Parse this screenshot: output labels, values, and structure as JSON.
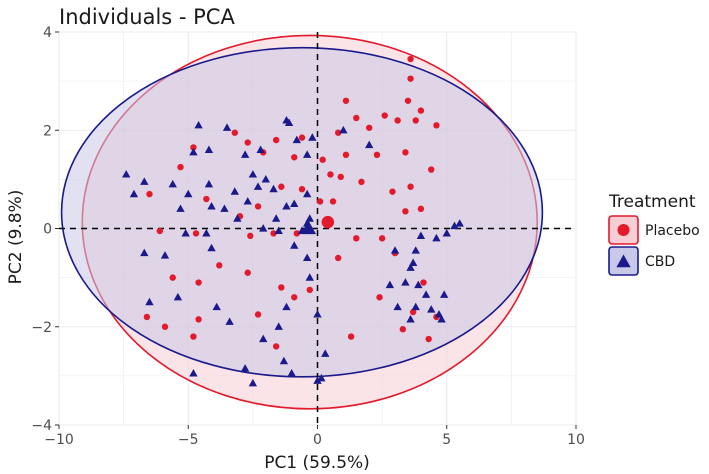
{
  "chart_data": {
    "type": "scatter",
    "title": "Individuals - PCA",
    "xlabel": "PC1 (59.5%)",
    "ylabel": "PC2 (9.8%)",
    "xlim": [
      -10,
      10
    ],
    "ylim": [
      -4,
      4
    ],
    "x_ticks": [
      -10,
      -5,
      0,
      5,
      10
    ],
    "y_ticks": [
      -4,
      -2,
      0,
      2,
      4
    ],
    "x_tick_labels": [
      "−10",
      "−5",
      "0",
      "5",
      "10"
    ],
    "y_tick_labels": [
      "−4",
      "−2",
      "0",
      "2",
      "4"
    ],
    "grid": true,
    "reference_lines": {
      "x": 0,
      "y": 0,
      "style": "dashed"
    },
    "legend": {
      "title": "Treatment",
      "position": "right"
    },
    "series": [
      {
        "name": "Placebo",
        "color": "#e31a2c",
        "fill": "#f8cdd3",
        "marker": "circle",
        "centroid": [
          0.4,
          0.13
        ],
        "ellipse": {
          "cx": -0.3,
          "cy": 0.13,
          "rx": 8.8,
          "ry": 3.8
        },
        "points": [
          [
            3.6,
            3.45
          ],
          [
            3.6,
            3.05
          ],
          [
            1.1,
            2.6
          ],
          [
            3.5,
            2.6
          ],
          [
            4.0,
            2.4
          ],
          [
            1.5,
            2.25
          ],
          [
            2.6,
            2.3
          ],
          [
            3.8,
            2.2
          ],
          [
            4.6,
            2.1
          ],
          [
            0.8,
            1.95
          ],
          [
            2.0,
            2.05
          ],
          [
            3.1,
            2.2
          ],
          [
            -0.6,
            1.85
          ],
          [
            -1.6,
            1.8
          ],
          [
            -2.7,
            1.75
          ],
          [
            -3.2,
            1.95
          ],
          [
            -4.8,
            1.65
          ],
          [
            -2.1,
            1.55
          ],
          [
            -0.9,
            1.45
          ],
          [
            0.2,
            1.4
          ],
          [
            1.1,
            1.5
          ],
          [
            2.3,
            1.5
          ],
          [
            3.4,
            1.55
          ],
          [
            4.4,
            1.2
          ],
          [
            -5.3,
            1.25
          ],
          [
            0.5,
            1.1
          ],
          [
            0.9,
            1.05
          ],
          [
            -0.6,
            0.8
          ],
          [
            1.7,
            0.95
          ],
          [
            3.6,
            0.85
          ],
          [
            -1.4,
            0.85
          ],
          [
            -6.5,
            0.7
          ],
          [
            -4.3,
            0.6
          ],
          [
            0.1,
            0.55
          ],
          [
            2.9,
            0.75
          ],
          [
            0.6,
            0.55
          ],
          [
            -2.3,
            0.45
          ],
          [
            -3.0,
            0.25
          ],
          [
            3.4,
            0.35
          ],
          [
            4.0,
            0.4
          ],
          [
            -6.1,
            -0.05
          ],
          [
            -1.7,
            -0.1
          ],
          [
            -2.6,
            -0.15
          ],
          [
            -4.7,
            -0.1
          ],
          [
            -0.8,
            -0.1
          ],
          [
            1.5,
            -0.2
          ],
          [
            2.5,
            -0.2
          ],
          [
            3.0,
            -0.5
          ],
          [
            0.8,
            -0.6
          ],
          [
            -3.8,
            -0.75
          ],
          [
            -5.6,
            -1.0
          ],
          [
            -4.6,
            -1.1
          ],
          [
            -2.7,
            -0.9
          ],
          [
            -1.4,
            -1.2
          ],
          [
            -0.3,
            -1.25
          ],
          [
            4.1,
            -1.1
          ],
          [
            2.4,
            -1.4
          ],
          [
            -6.6,
            -1.8
          ],
          [
            -4.6,
            -1.85
          ],
          [
            -2.3,
            -1.75
          ],
          [
            -0.9,
            -1.4
          ],
          [
            3.7,
            -1.7
          ],
          [
            -5.9,
            -2.0
          ],
          [
            4.6,
            -1.8
          ],
          [
            3.3,
            -2.05
          ],
          [
            -4.8,
            -2.2
          ],
          [
            1.3,
            -2.2
          ],
          [
            4.3,
            -2.25
          ],
          [
            -1.6,
            -2.4
          ]
        ]
      },
      {
        "name": "CBD",
        "color": "#1a1a8c",
        "fill": "#c8c8e8",
        "marker": "triangle",
        "centroid": [
          -0.35,
          0.0
        ],
        "ellipse": {
          "cx": -0.6,
          "cy": 0.33,
          "rx": 9.3,
          "ry": 3.35
        },
        "points": [
          [
            -1.2,
            2.2
          ],
          [
            -1.1,
            2.15
          ],
          [
            -4.6,
            2.1
          ],
          [
            -3.5,
            2.05
          ],
          [
            -2.2,
            1.6
          ],
          [
            -0.8,
            1.8
          ],
          [
            -0.2,
            1.85
          ],
          [
            1.0,
            2.0
          ],
          [
            -4.2,
            1.6
          ],
          [
            -4.8,
            1.55
          ],
          [
            -2.8,
            1.5
          ],
          [
            -0.4,
            1.5
          ],
          [
            2.0,
            1.7
          ],
          [
            -7.4,
            1.1
          ],
          [
            -6.7,
            0.95
          ],
          [
            -5.6,
            0.9
          ],
          [
            -4.2,
            0.9
          ],
          [
            -2.5,
            1.1
          ],
          [
            -2.0,
            1.0
          ],
          [
            -1.7,
            0.8
          ],
          [
            -7.1,
            0.7
          ],
          [
            -5.0,
            0.7
          ],
          [
            -3.2,
            0.75
          ],
          [
            -2.3,
            0.85
          ],
          [
            -0.9,
            0.5
          ],
          [
            -5.3,
            0.4
          ],
          [
            -4.1,
            0.45
          ],
          [
            -3.6,
            0.4
          ],
          [
            -2.7,
            0.55
          ],
          [
            -1.2,
            0.45
          ],
          [
            -0.4,
            0.7
          ],
          [
            -3.1,
            0.2
          ],
          [
            -1.6,
            0.2
          ],
          [
            -0.3,
            0.2
          ],
          [
            5.5,
            0.1
          ],
          [
            5.3,
            0.05
          ],
          [
            -5.1,
            -0.1
          ],
          [
            -4.3,
            -0.1
          ],
          [
            -2.1,
            0.0
          ],
          [
            -1.5,
            -0.05
          ],
          [
            -0.6,
            -0.05
          ],
          [
            -0.4,
            0.1
          ],
          [
            4.0,
            -0.15
          ],
          [
            5.0,
            -0.1
          ],
          [
            -6.7,
            -0.5
          ],
          [
            -5.9,
            -0.55
          ],
          [
            -4.1,
            -0.4
          ],
          [
            -0.9,
            -0.35
          ],
          [
            -0.4,
            -0.6
          ],
          [
            3.0,
            -0.45
          ],
          [
            3.8,
            -0.45
          ],
          [
            4.6,
            -0.2
          ],
          [
            3.7,
            -0.7
          ],
          [
            3.6,
            -0.8
          ],
          [
            -0.3,
            -1.0
          ],
          [
            2.8,
            -1.15
          ],
          [
            3.4,
            -1.1
          ],
          [
            3.9,
            -1.15
          ],
          [
            4.2,
            -1.35
          ],
          [
            4.9,
            -1.35
          ],
          [
            -6.5,
            -1.5
          ],
          [
            -5.4,
            -1.4
          ],
          [
            -3.9,
            -1.6
          ],
          [
            -1.2,
            -1.6
          ],
          [
            3.1,
            -1.6
          ],
          [
            3.8,
            -1.6
          ],
          [
            4.4,
            -1.65
          ],
          [
            4.7,
            -1.75
          ],
          [
            -3.4,
            -1.9
          ],
          [
            -1.5,
            -2.0
          ],
          [
            0.0,
            -1.75
          ],
          [
            4.8,
            -1.85
          ],
          [
            3.6,
            -1.85
          ],
          [
            -2.1,
            -2.25
          ],
          [
            -2.8,
            -2.85
          ],
          [
            -1.0,
            -2.95
          ],
          [
            0.3,
            -2.55
          ],
          [
            -4.8,
            -2.95
          ],
          [
            -2.5,
            -3.15
          ],
          [
            0.0,
            -3.1
          ],
          [
            0.15,
            -3.05
          ],
          [
            -1.3,
            -2.7
          ]
        ]
      }
    ]
  }
}
